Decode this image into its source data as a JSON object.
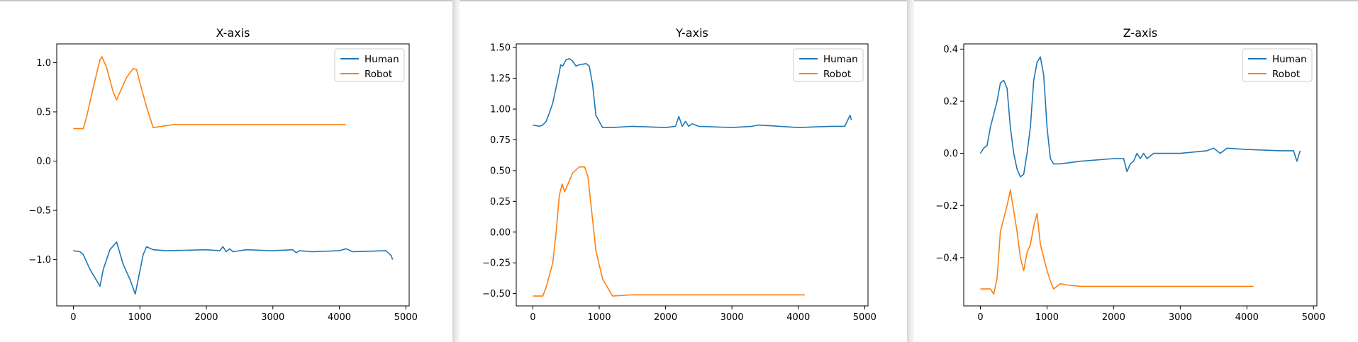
{
  "colors": {
    "human": "#1f77b4",
    "robot": "#ff7f0e",
    "axis": "#000000",
    "legend_border": "#cccccc"
  },
  "chart_data": [
    {
      "type": "line",
      "title": "X-axis",
      "xlabel": "",
      "ylabel": "",
      "xlim": [
        -250,
        5050
      ],
      "ylim": [
        -1.47,
        1.19
      ],
      "xticks": [
        0,
        1000,
        2000,
        3000,
        4000,
        5000
      ],
      "xtick_labels": [
        "0",
        "1000",
        "2000",
        "3000",
        "4000",
        "5000"
      ],
      "yticks": [
        -1.0,
        -0.5,
        0.0,
        0.5,
        1.0
      ],
      "ytick_labels": [
        "−1.0",
        "−0.5",
        "0.0",
        "0.5",
        "1.0"
      ],
      "grid": false,
      "legend": "top-right",
      "series": [
        {
          "name": "Human",
          "x": [
            0,
            100,
            150,
            250,
            400,
            450,
            550,
            650,
            750,
            850,
            930,
            1050,
            1100,
            1200,
            1400,
            2000,
            2200,
            2250,
            2300,
            2350,
            2400,
            2600,
            3000,
            3300,
            3350,
            3400,
            3600,
            4000,
            4100,
            4200,
            4700,
            4780,
            4800
          ],
          "y": [
            -0.91,
            -0.92,
            -0.95,
            -1.1,
            -1.27,
            -1.1,
            -0.9,
            -0.82,
            -1.05,
            -1.2,
            -1.35,
            -0.95,
            -0.87,
            -0.9,
            -0.91,
            -0.9,
            -0.91,
            -0.87,
            -0.92,
            -0.89,
            -0.92,
            -0.9,
            -0.91,
            -0.9,
            -0.93,
            -0.91,
            -0.92,
            -0.91,
            -0.89,
            -0.92,
            -0.91,
            -0.96,
            -1.0
          ]
        },
        {
          "name": "Robot",
          "x": [
            0,
            150,
            200,
            300,
            400,
            430,
            500,
            600,
            650,
            700,
            800,
            900,
            950,
            1000,
            1100,
            1200,
            1300,
            1500,
            2000,
            3000,
            4100
          ],
          "y": [
            0.33,
            0.33,
            0.45,
            0.75,
            1.03,
            1.06,
            0.95,
            0.7,
            0.62,
            0.7,
            0.85,
            0.94,
            0.93,
            0.8,
            0.55,
            0.34,
            0.35,
            0.37,
            0.37,
            0.37,
            0.37
          ]
        }
      ]
    },
    {
      "type": "line",
      "title": "Y-axis",
      "xlabel": "",
      "ylabel": "",
      "xlim": [
        -250,
        5050
      ],
      "ylim": [
        -0.6,
        1.53
      ],
      "xticks": [
        0,
        1000,
        2000,
        3000,
        4000,
        5000
      ],
      "xtick_labels": [
        "0",
        "1000",
        "2000",
        "3000",
        "4000",
        "5000"
      ],
      "yticks": [
        -0.5,
        -0.25,
        0.0,
        0.25,
        0.5,
        0.75,
        1.0,
        1.25,
        1.5
      ],
      "ytick_labels": [
        "−0.50",
        "−0.25",
        "0.00",
        "0.25",
        "0.50",
        "0.75",
        "1.00",
        "1.25",
        "1.50"
      ],
      "grid": false,
      "legend": "top-right",
      "series": [
        {
          "name": "Human",
          "x": [
            0,
            100,
            150,
            200,
            250,
            300,
            400,
            420,
            450,
            500,
            550,
            600,
            650,
            700,
            800,
            850,
            900,
            950,
            1050,
            1200,
            1500,
            2000,
            2150,
            2200,
            2250,
            2300,
            2350,
            2400,
            2500,
            3000,
            3300,
            3400,
            4000,
            4500,
            4700,
            4780,
            4800
          ],
          "y": [
            0.87,
            0.86,
            0.87,
            0.9,
            0.97,
            1.05,
            1.3,
            1.36,
            1.35,
            1.4,
            1.41,
            1.39,
            1.35,
            1.36,
            1.37,
            1.35,
            1.2,
            0.95,
            0.85,
            0.85,
            0.86,
            0.85,
            0.86,
            0.94,
            0.86,
            0.9,
            0.86,
            0.88,
            0.86,
            0.85,
            0.86,
            0.87,
            0.85,
            0.86,
            0.86,
            0.95,
            0.91
          ]
        },
        {
          "name": "Robot",
          "x": [
            0,
            150,
            200,
            300,
            350,
            400,
            440,
            480,
            520,
            600,
            700,
            780,
            830,
            880,
            950,
            1050,
            1200,
            1500,
            2000,
            3000,
            4100
          ],
          "y": [
            -0.52,
            -0.52,
            -0.45,
            -0.25,
            0.0,
            0.3,
            0.39,
            0.33,
            0.38,
            0.48,
            0.53,
            0.53,
            0.45,
            0.2,
            -0.15,
            -0.38,
            -0.52,
            -0.51,
            -0.51,
            -0.51,
            -0.51
          ]
        }
      ]
    },
    {
      "type": "line",
      "title": "Z-axis",
      "xlabel": "",
      "ylabel": "",
      "xlim": [
        -250,
        5050
      ],
      "ylim": [
        -0.585,
        0.42
      ],
      "xticks": [
        0,
        1000,
        2000,
        3000,
        4000,
        5000
      ],
      "xtick_labels": [
        "0",
        "1000",
        "2000",
        "3000",
        "4000",
        "5000"
      ],
      "yticks": [
        -0.4,
        -0.2,
        0.0,
        0.2,
        0.4
      ],
      "ytick_labels": [
        "−0.4",
        "−0.2",
        "0.0",
        "0.2",
        "0.4"
      ],
      "grid": false,
      "legend": "top-right",
      "series": [
        {
          "name": "Human",
          "x": [
            0,
            50,
            100,
            150,
            200,
            250,
            300,
            350,
            400,
            450,
            500,
            550,
            600,
            650,
            700,
            750,
            800,
            850,
            900,
            950,
            1000,
            1050,
            1100,
            1200,
            1500,
            2000,
            2150,
            2200,
            2250,
            2300,
            2350,
            2400,
            2450,
            2500,
            2600,
            3000,
            3400,
            3500,
            3600,
            3700,
            4000,
            4500,
            4700,
            4750,
            4800
          ],
          "y": [
            0.0,
            0.02,
            0.03,
            0.1,
            0.15,
            0.2,
            0.27,
            0.28,
            0.25,
            0.1,
            0.0,
            -0.06,
            -0.09,
            -0.08,
            0.0,
            0.1,
            0.28,
            0.35,
            0.37,
            0.3,
            0.1,
            -0.02,
            -0.04,
            -0.04,
            -0.03,
            -0.02,
            -0.02,
            -0.07,
            -0.04,
            -0.03,
            0.0,
            -0.02,
            0.0,
            -0.02,
            0.0,
            0.0,
            0.01,
            0.02,
            0.0,
            0.02,
            0.015,
            0.01,
            0.01,
            -0.03,
            0.01
          ]
        },
        {
          "name": "Robot",
          "x": [
            0,
            100,
            150,
            200,
            250,
            300,
            350,
            400,
            450,
            500,
            550,
            600,
            650,
            700,
            750,
            800,
            850,
            900,
            950,
            1000,
            1050,
            1100,
            1150,
            1200,
            1300,
            1500,
            2000,
            3000,
            4100
          ],
          "y": [
            -0.52,
            -0.52,
            -0.52,
            -0.54,
            -0.48,
            -0.3,
            -0.25,
            -0.2,
            -0.14,
            -0.22,
            -0.3,
            -0.4,
            -0.45,
            -0.38,
            -0.35,
            -0.28,
            -0.23,
            -0.35,
            -0.4,
            -0.45,
            -0.49,
            -0.52,
            -0.51,
            -0.5,
            -0.505,
            -0.51,
            -0.51,
            -0.51,
            -0.51
          ]
        }
      ]
    }
  ]
}
